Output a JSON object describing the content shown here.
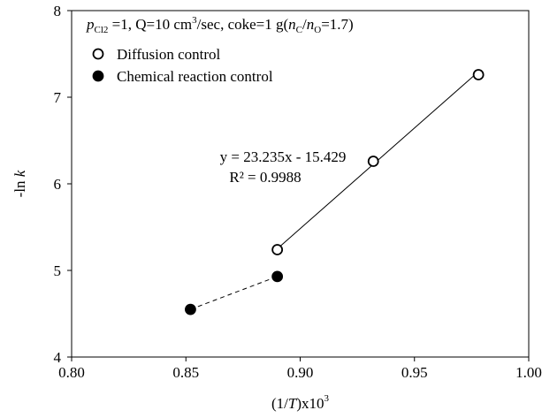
{
  "chart_data": {
    "type": "scatter",
    "xlabel": {
      "pre": "(1/",
      "var": "T",
      "post": ")x10",
      "sup": "3"
    },
    "ylabel": {
      "pre": "-ln ",
      "var": "k"
    },
    "xlim": [
      0.8,
      1.0
    ],
    "ylim": [
      4,
      8
    ],
    "xticks": [
      "0.80",
      "0.85",
      "0.90",
      "0.95",
      "1.00"
    ],
    "yticks": [
      "4",
      "5",
      "6",
      "7",
      "8"
    ],
    "grid": false,
    "conditions": {
      "p_var": "p",
      "p_sub": "Cl2",
      "text1": " =1, Q=10 cm",
      "sup1": "3",
      "text2": "/sec, coke=1 g(",
      "n1_var": "n",
      "n1_sub": "C",
      "slash": "/",
      "n2_var": "n",
      "n2_sub": "O",
      "text3": "=1.7)"
    },
    "legend_position": "top-left",
    "series": [
      {
        "name": "Diffusion control",
        "marker": "open-circle",
        "color": "#000000",
        "points": [
          {
            "x": 0.89,
            "y": 5.24
          },
          {
            "x": 0.932,
            "y": 6.26
          },
          {
            "x": 0.978,
            "y": 7.26
          }
        ],
        "trendline": {
          "style": "solid",
          "x_range": [
            0.89,
            0.978
          ],
          "slope": 23.235,
          "intercept": -15.429,
          "equation": "y = 23.235x - 15.429",
          "r2_label": "R² = 0.9988"
        }
      },
      {
        "name": "Chemical reaction control",
        "marker": "filled-circle",
        "color": "#000000",
        "points": [
          {
            "x": 0.852,
            "y": 4.55
          },
          {
            "x": 0.89,
            "y": 4.93
          }
        ],
        "connector": "dashed"
      }
    ]
  }
}
